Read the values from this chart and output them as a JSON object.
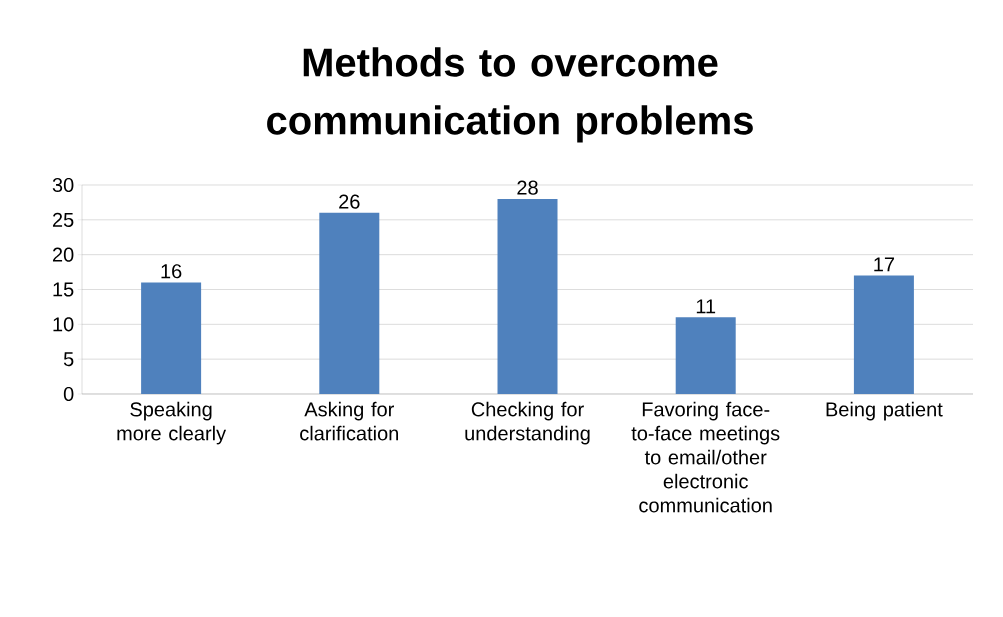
{
  "chart_data": {
    "type": "bar",
    "title": "Methods to overcome communication problems",
    "categories": [
      "Speaking more clearly",
      "Asking for clarification",
      "Checking for understanding",
      "Favoring face-to-face meetings to email/other electronic communication",
      "Being patient"
    ],
    "values": [
      16,
      26,
      28,
      11,
      17
    ],
    "color": "#4f81bd",
    "ylim": [
      0,
      30
    ],
    "yticks": [
      0,
      5,
      10,
      15,
      20,
      25,
      30
    ],
    "grid": "y",
    "data_labels": true
  }
}
